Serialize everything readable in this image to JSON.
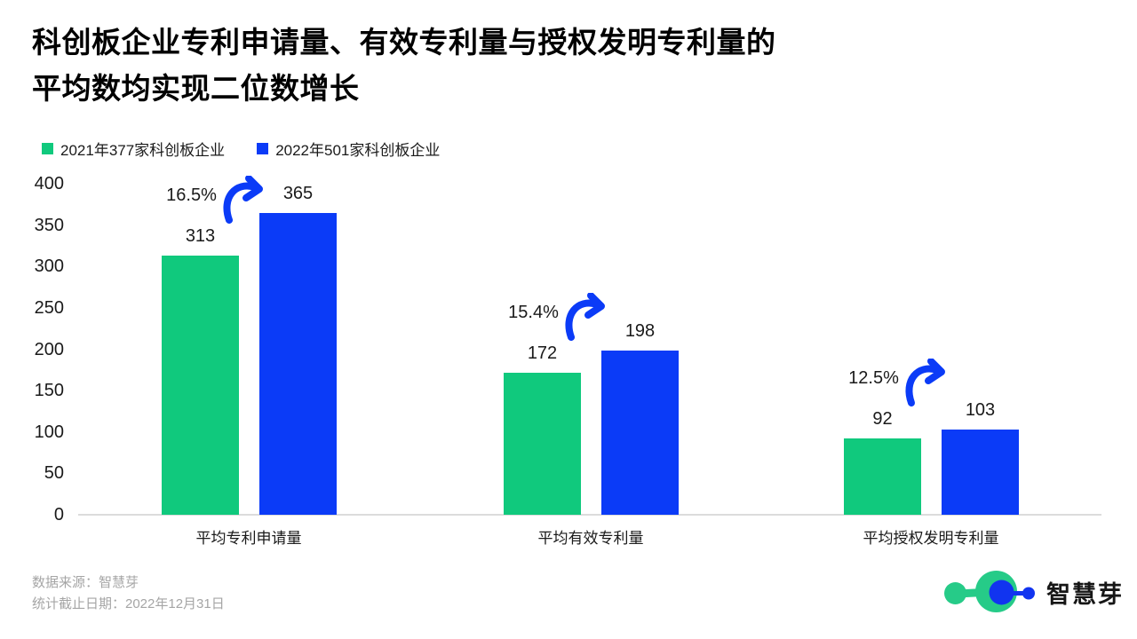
{
  "title": {
    "line1": "科创板企业专利申请量、有效专利量与授权发明专利量的",
    "line2": "平均数均实现二位数增长"
  },
  "legend": {
    "items": [
      {
        "label": "2021年377家科创板企业",
        "color": "#10C97D"
      },
      {
        "label": "2022年501家科创板企业",
        "color": "#0B3BF7"
      }
    ]
  },
  "chart_data": {
    "type": "bar",
    "categories": [
      "平均专利申请量",
      "平均有效专利量",
      "平均授权发明专利量"
    ],
    "series": [
      {
        "name": "2021年377家科创板企业",
        "color": "#10C97D",
        "values": [
          313,
          172,
          92
        ]
      },
      {
        "name": "2022年501家科创板企业",
        "color": "#0B3BF7",
        "values": [
          365,
          198,
          103
        ]
      }
    ],
    "growth_labels": [
      "16.5%",
      "15.4%",
      "12.5%"
    ],
    "xlabel": "",
    "ylabel": "",
    "ylim": [
      0,
      400
    ],
    "yticks": [
      0,
      50,
      100,
      150,
      200,
      250,
      300,
      350,
      400
    ],
    "grid": false,
    "legend_position": "top-left",
    "annotation_arrow_color": "#0B3BF7"
  },
  "footer": {
    "source": "数据来源：智慧芽",
    "cutoff_date": "统计截止日期：2022年12月31日",
    "logo_text": "智慧芽",
    "logo_colors": {
      "green": "#26CB88",
      "blue": "#1134F0"
    }
  }
}
